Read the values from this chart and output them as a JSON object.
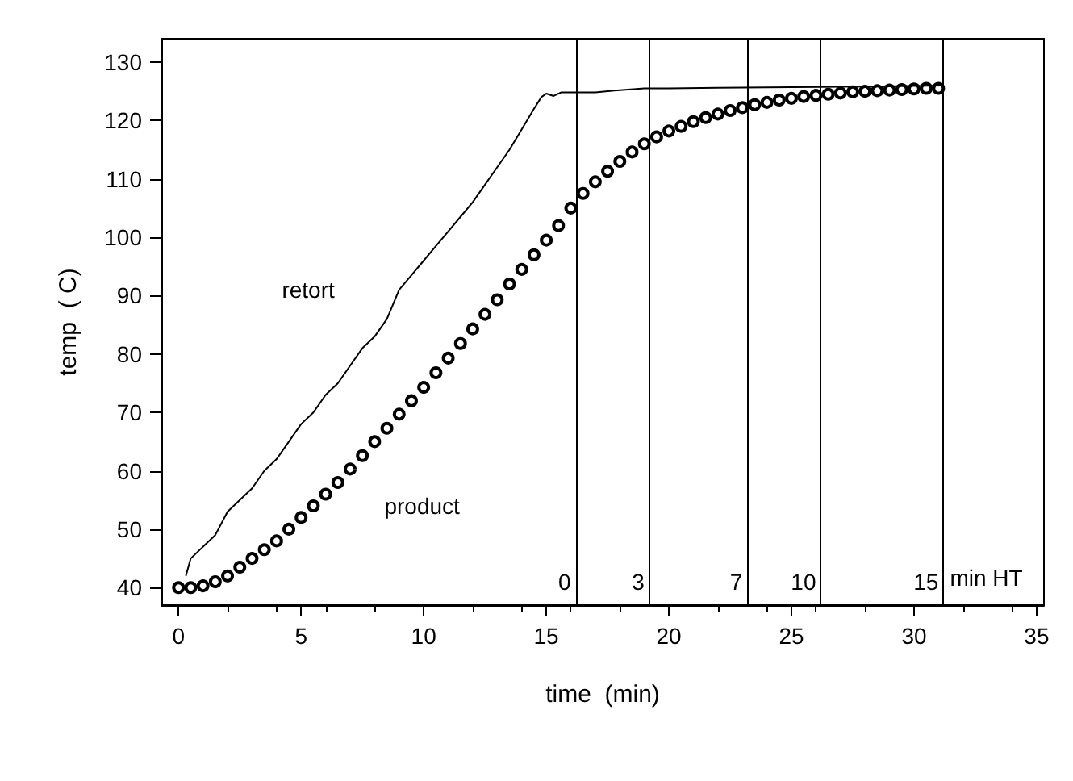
{
  "chart_data": {
    "type": "line",
    "xlabel": "time  (min)",
    "ylabel": "temp  ( C)",
    "xlim": [
      -0.7,
      35.3
    ],
    "xticks": [
      0,
      5,
      10,
      15,
      20,
      25,
      30,
      35
    ],
    "ylim": [
      37,
      134
    ],
    "yticks": [
      40,
      50,
      60,
      70,
      80,
      90,
      100,
      110,
      120,
      130
    ],
    "grid": false,
    "legend": false,
    "line_style": "solid",
    "series": [
      {
        "name": "retort",
        "color": "#000000",
        "marker": "none",
        "x": [
          0.3,
          0.5,
          1,
          1.5,
          2,
          2.5,
          3,
          3.5,
          4,
          4.5,
          5,
          5.5,
          6,
          6.5,
          7,
          7.5,
          8,
          8.5,
          9,
          9.5,
          10,
          10.5,
          11,
          11.5,
          12,
          12.5,
          13,
          13.5,
          14,
          14.5,
          14.8,
          15,
          15.3,
          15.6,
          16,
          17,
          18,
          19,
          20,
          22,
          25,
          28,
          31.2
        ],
        "values": [
          42,
          45,
          47,
          49,
          53,
          55,
          57,
          60,
          62,
          65,
          68,
          70,
          73,
          75,
          78,
          81,
          83,
          86,
          91,
          93.5,
          96,
          98.5,
          101,
          103.5,
          106,
          109,
          112,
          115,
          118.5,
          122,
          124,
          124.6,
          124.2,
          124.8,
          124.8,
          124.8,
          125.2,
          125.5,
          125.5,
          125.6,
          125.7,
          125.8,
          126
        ]
      },
      {
        "name": "product",
        "type": "scatter",
        "color": "#000000",
        "marker": "circle",
        "x": [
          0,
          0.5,
          1,
          1.5,
          2,
          2.5,
          3,
          3.5,
          4,
          4.5,
          5,
          5.5,
          6,
          6.5,
          7,
          7.5,
          8,
          8.5,
          9,
          9.5,
          10,
          10.5,
          11,
          11.5,
          12,
          12.5,
          13,
          13.5,
          14,
          14.5,
          15,
          15.5,
          16,
          16.5,
          17,
          17.5,
          18,
          18.5,
          19,
          19.5,
          20,
          20.5,
          21,
          21.5,
          22,
          22.5,
          23,
          23.5,
          24,
          24.5,
          25,
          25.5,
          26,
          26.5,
          27,
          27.5,
          28,
          28.5,
          29,
          29.5,
          30,
          30.5,
          31
        ],
        "values": [
          40,
          40,
          40.3,
          41,
          42,
          43.5,
          45,
          46.5,
          48,
          50,
          52,
          54,
          56,
          58,
          60.3,
          62.6,
          65,
          67.3,
          69.7,
          72,
          74.3,
          76.8,
          79.3,
          81.8,
          84.3,
          86.8,
          89.3,
          92,
          94.5,
          97,
          99.5,
          102,
          105,
          107.5,
          109.5,
          111.3,
          113,
          114.6,
          116,
          117.2,
          118.2,
          119,
          119.8,
          120.5,
          121.1,
          121.7,
          122.2,
          122.7,
          123.1,
          123.5,
          123.8,
          124.1,
          124.3,
          124.5,
          124.7,
          124.9,
          125,
          125.1,
          125.2,
          125.3,
          125.4,
          125.5,
          125.5
        ]
      }
    ],
    "ref_lines": [
      {
        "axis": "x",
        "value": 16.2
      },
      {
        "axis": "x",
        "value": 19.2
      },
      {
        "axis": "x",
        "value": 23.2
      },
      {
        "axis": "x",
        "value": 26.2
      },
      {
        "axis": "x",
        "value": 31.2
      }
    ],
    "annotations": [
      {
        "text": "0",
        "x": 16.2,
        "y": 41
      },
      {
        "text": "3",
        "x": 19.2,
        "y": 41
      },
      {
        "text": "7",
        "x": 23.2,
        "y": 41
      },
      {
        "text": "10",
        "x": 26.2,
        "y": 41
      },
      {
        "text": "15",
        "x": 31.2,
        "y": 41
      },
      "min HT"
    ]
  }
}
